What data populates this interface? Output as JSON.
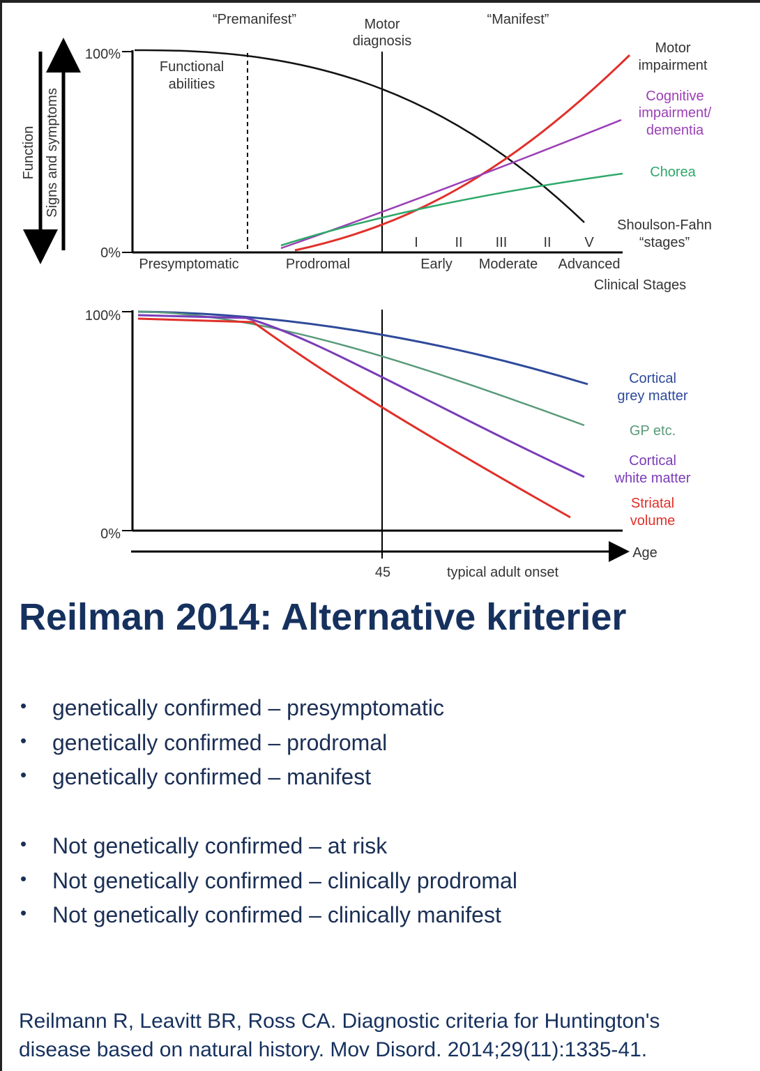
{
  "figure": {
    "top": {
      "premanifest": "“Premanifest”",
      "motor_diagnosis": [
        "Motor",
        "diagnosis"
      ],
      "manifest": "“Manifest”",
      "y_max": "100%",
      "y_min": "0%",
      "functional_abilities": [
        "Functional",
        "abilities"
      ],
      "function_arrow": "Function",
      "signs_arrow": "Signs and symptoms",
      "motor_impairment": [
        "Motor",
        "impairment"
      ],
      "cognitive_impairment": [
        "Cognitive",
        "impairment/",
        "dementia"
      ],
      "chorea": "Chorea",
      "shoulson_fahn": [
        "Shoulson-Fahn",
        "“stages”"
      ],
      "stage_numerals": [
        "I",
        "II",
        "III",
        "II",
        "V"
      ],
      "phases": [
        "Presymptomatic",
        "Prodromal",
        "Early",
        "Moderate",
        "Advanced"
      ],
      "clinical_stages": "Clinical Stages"
    },
    "bottom": {
      "y_max": "100%",
      "y_min": "0%",
      "cortical_grey": [
        "Cortical",
        "grey matter"
      ],
      "gp": "GP etc.",
      "cortical_white": [
        "Cortical",
        "white matter"
      ],
      "striatal": [
        "Striatal",
        "volume"
      ],
      "age": "Age",
      "onset_age": "45",
      "onset_label": "typical adult onset"
    }
  },
  "title": "Reilman 2014: Alternative kriterier",
  "bullets": {
    "genetic": [
      "genetically confirmed – presymptomatic",
      "genetically confirmed – prodromal",
      "genetically confirmed – manifest"
    ],
    "not_genetic": [
      "Not genetically confirmed – at risk",
      "Not genetically confirmed – clinically prodromal",
      "Not genetically confirmed – clinically manifest"
    ]
  },
  "citation": [
    "Reilmann R, Leavitt BR, Ross CA. Diagnostic criteria for Huntington's",
    "disease based on natural history. Mov Disord. 2014;29(11):1335-41."
  ]
}
